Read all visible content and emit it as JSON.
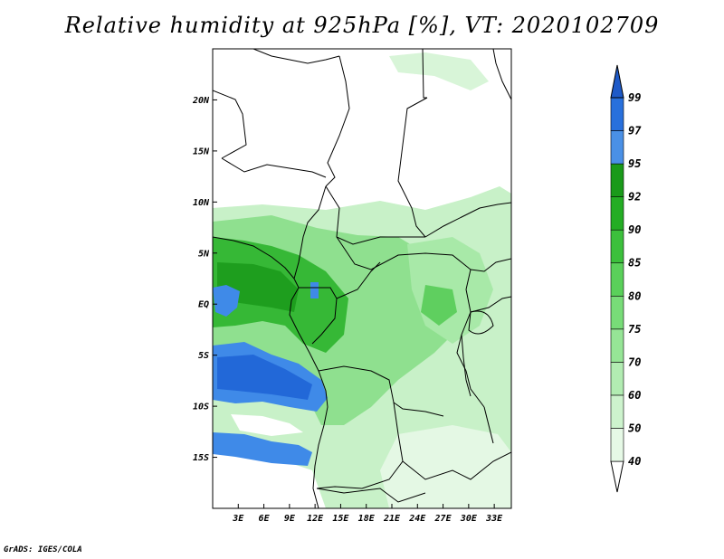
{
  "title": "Relative humidity at 925hPa [%], VT: 2020102709",
  "credit": "GrADS: IGES/COLA",
  "map": {
    "lon_range": [
      0,
      35
    ],
    "lat_range": [
      -20,
      25
    ],
    "lon_ticks": [
      {
        "value": 3,
        "label": "3E"
      },
      {
        "value": 6,
        "label": "6E"
      },
      {
        "value": 9,
        "label": "9E"
      },
      {
        "value": 12,
        "label": "12E"
      },
      {
        "value": 15,
        "label": "15E"
      },
      {
        "value": 18,
        "label": "18E"
      },
      {
        "value": 21,
        "label": "21E"
      },
      {
        "value": 24,
        "label": "24E"
      },
      {
        "value": 27,
        "label": "27E"
      },
      {
        "value": 30,
        "label": "30E"
      },
      {
        "value": 33,
        "label": "33E"
      }
    ],
    "lat_ticks": [
      {
        "value": 20,
        "label": "20N"
      },
      {
        "value": 15,
        "label": "15N"
      },
      {
        "value": 10,
        "label": "10N"
      },
      {
        "value": 5,
        "label": "5N"
      },
      {
        "value": 0,
        "label": "EQ"
      },
      {
        "value": -5,
        "label": "5S"
      },
      {
        "value": -10,
        "label": "10S"
      },
      {
        "value": -15,
        "label": "15S"
      }
    ]
  },
  "colorbar": {
    "levels": [
      "40",
      "50",
      "60",
      "70",
      "75",
      "80",
      "85",
      "90",
      "92",
      "95",
      "97",
      "99"
    ],
    "colors": [
      "#ffffff",
      "#e6f9e6",
      "#cdf3cd",
      "#b2ecb2",
      "#96e596",
      "#78dc78",
      "#5ad05a",
      "#3cc03c",
      "#24ad24",
      "#1a9a1a",
      "#4a90e6",
      "#2870dc",
      "#1e5ac8"
    ]
  }
}
